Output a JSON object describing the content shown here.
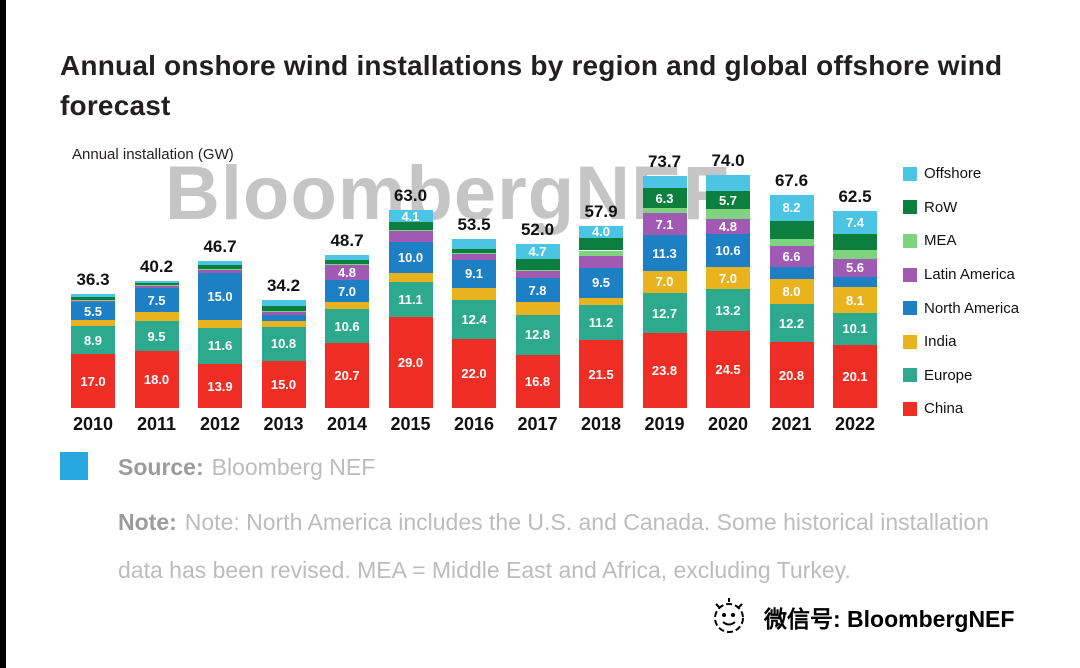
{
  "header": {
    "title": "Annual onshore wind installations by region and global offshore wind forecast",
    "axis_label": "Annual installation (GW)",
    "watermark": "BloombergNEF"
  },
  "source": {
    "label": "Source:",
    "text": "Bloomberg NEF"
  },
  "note": {
    "label": "Note:",
    "text": "Note: North America includes the U.S. and Canada. Some historical installation data has been revised. MEA = Middle East and Africa, excluding Turkey."
  },
  "footer": {
    "wechat": "微信号: BloombergNEF"
  },
  "colors": {
    "china": "#ee2e24",
    "europe": "#2daa8e",
    "india": "#e9b320",
    "north_america": "#1d7fc4",
    "latin_america": "#a05ab4",
    "mea": "#7ed47e",
    "row": "#0c7f3f",
    "offshore": "#4cc4e4",
    "source_square": "#29a8e0"
  },
  "chart_data": {
    "type": "bar",
    "stacked": true,
    "title": "Annual onshore wind installations by region and global offshore wind forecast",
    "xlabel": "",
    "ylabel": "Annual installation (GW)",
    "ylim": [
      0,
      80
    ],
    "grid": false,
    "legend_position": "right",
    "legend_order_top_to_bottom": [
      "Offshore",
      "RoW",
      "MEA",
      "Latin America",
      "North America",
      "India",
      "Europe",
      "China"
    ],
    "categories": [
      "2010",
      "2011",
      "2012",
      "2013",
      "2014",
      "2015",
      "2016",
      "2017",
      "2018",
      "2019",
      "2020",
      "2021",
      "2022"
    ],
    "totals": [
      36.3,
      40.2,
      46.7,
      34.2,
      48.7,
      63.0,
      53.5,
      52.0,
      57.9,
      73.7,
      74.0,
      67.6,
      62.5
    ],
    "series": [
      {
        "name": "China",
        "color": "#ee2e24",
        "values": [
          17.0,
          18.0,
          13.9,
          15.0,
          20.7,
          29.0,
          22.0,
          16.8,
          21.5,
          23.8,
          24.5,
          20.8,
          20.1
        ],
        "labels_shown": [
          true,
          true,
          true,
          true,
          true,
          true,
          true,
          true,
          true,
          true,
          true,
          true,
          true
        ]
      },
      {
        "name": "Europe",
        "color": "#2daa8e",
        "values": [
          8.9,
          9.5,
          11.6,
          10.8,
          10.6,
          11.1,
          12.4,
          12.8,
          11.2,
          12.7,
          13.2,
          12.2,
          10.1
        ],
        "labels_shown": [
          true,
          true,
          true,
          true,
          true,
          true,
          true,
          true,
          true,
          true,
          true,
          true,
          true
        ]
      },
      {
        "name": "India",
        "color": "#e9b320",
        "values": [
          2.1,
          3.0,
          2.3,
          1.7,
          2.3,
          2.6,
          3.6,
          3.9,
          2.3,
          7.0,
          7.0,
          8.0,
          8.1
        ],
        "labels_shown": [
          false,
          false,
          false,
          false,
          false,
          false,
          false,
          false,
          false,
          true,
          true,
          true,
          true
        ]
      },
      {
        "name": "North America",
        "color": "#1d7fc4",
        "values": [
          5.5,
          7.5,
          15.0,
          1.9,
          7.0,
          10.0,
          9.1,
          7.8,
          9.5,
          11.3,
          10.6,
          3.9,
          3.4
        ],
        "labels_shown": [
          true,
          true,
          true,
          false,
          true,
          true,
          true,
          true,
          true,
          true,
          true,
          false,
          false
        ]
      },
      {
        "name": "Latin America",
        "color": "#a05ab4",
        "values": [
          0.7,
          1.0,
          1.2,
          1.2,
          4.8,
          3.6,
          2.0,
          2.2,
          3.9,
          7.1,
          4.8,
          6.6,
          5.6
        ],
        "labels_shown": [
          false,
          false,
          false,
          false,
          true,
          false,
          false,
          false,
          false,
          true,
          true,
          true,
          true
        ]
      },
      {
        "name": "MEA",
        "color": "#7ed47e",
        "values": [
          0.2,
          0.2,
          0.2,
          0.2,
          0.3,
          0.3,
          0.2,
          0.3,
          1.6,
          1.6,
          3.0,
          2.0,
          2.8
        ],
        "labels_shown": [
          false,
          false,
          false,
          false,
          false,
          false,
          false,
          false,
          false,
          false,
          false,
          false,
          false
        ]
      },
      {
        "name": "RoW",
        "color": "#0c7f3f",
        "values": [
          0.9,
          0.5,
          1.2,
          1.7,
          1.3,
          2.3,
          1.3,
          3.5,
          3.9,
          6.3,
          5.7,
          5.9,
          5.0
        ],
        "labels_shown": [
          false,
          false,
          false,
          false,
          false,
          false,
          false,
          false,
          false,
          true,
          true,
          false,
          false
        ]
      },
      {
        "name": "Offshore",
        "color": "#4cc4e4",
        "values": [
          1.0,
          0.5,
          1.3,
          1.7,
          1.7,
          4.1,
          2.9,
          4.7,
          4.0,
          3.9,
          5.2,
          8.2,
          7.4
        ],
        "labels_shown": [
          false,
          false,
          false,
          false,
          false,
          true,
          false,
          true,
          true,
          false,
          false,
          true,
          true
        ]
      }
    ]
  }
}
